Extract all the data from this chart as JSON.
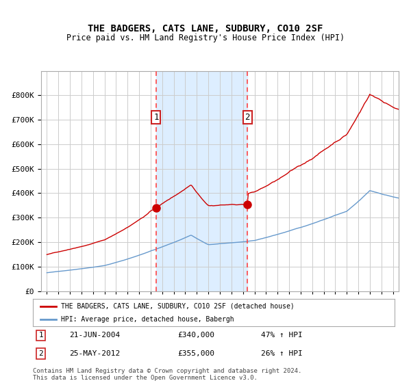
{
  "title": "THE BADGERS, CATS LANE, SUDBURY, CO10 2SF",
  "subtitle": "Price paid vs. HM Land Registry's House Price Index (HPI)",
  "legend_line1": "THE BADGERS, CATS LANE, SUDBURY, CO10 2SF (detached house)",
  "legend_line2": "HPI: Average price, detached house, Babergh",
  "annotation1_label": "1",
  "annotation1_date": "21-JUN-2004",
  "annotation1_price": "£340,000",
  "annotation1_hpi": "47% ↑ HPI",
  "annotation2_label": "2",
  "annotation2_date": "25-MAY-2012",
  "annotation2_price": "£355,000",
  "annotation2_hpi": "26% ↑ HPI",
  "footer": "Contains HM Land Registry data © Crown copyright and database right 2024.\nThis data is licensed under the Open Government Licence v3.0.",
  "red_color": "#cc0000",
  "blue_color": "#6699cc",
  "shade_color": "#ddeeff",
  "background_color": "#ffffff",
  "grid_color": "#cccccc",
  "dashed_line_color": "#ff4444",
  "marker1_x_year": 2004.47,
  "marker1_y": 340000,
  "marker2_x_year": 2012.39,
  "marker2_y": 355000,
  "vline1_x": 2004.47,
  "vline2_x": 2012.39,
  "ylim": [
    0,
    900000
  ],
  "xlim_start": 1994.5,
  "xlim_end": 2025.5
}
